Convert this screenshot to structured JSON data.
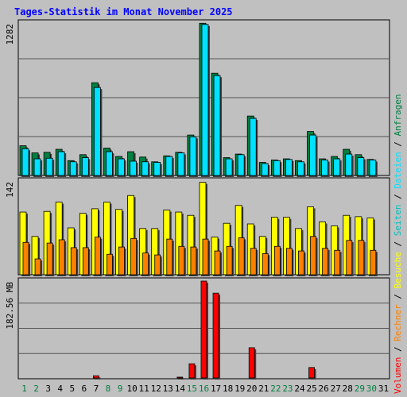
{
  "title": "Tages-Statistik im Monat November 2025",
  "right_legend": {
    "volumen": "Volumen",
    "rechner": "Rechner",
    "besuche": "Besuche",
    "seiten": "Seiten",
    "dateien": "Dateien",
    "anfragen": "Anfragen",
    "sep": " / "
  },
  "colors": {
    "background": "#c0c0c0",
    "title": "#0000ff",
    "anfragen": "#008040",
    "dateien": "#00e0ff",
    "seiten": "#00c0c0",
    "besuche": "#ffff00",
    "rechner": "#ff8000",
    "volumen": "#ff0000",
    "weekend_label": "#008040",
    "axis_label": "#000000",
    "frame": "#000000",
    "gridline": "#555555"
  },
  "chart_data": [
    {
      "type": "bar",
      "name": "hits_files",
      "ylabel": "1282",
      "ylim": [
        0,
        1282
      ],
      "categories": [
        "1",
        "2",
        "3",
        "4",
        "5",
        "6",
        "7",
        "8",
        "9",
        "10",
        "11",
        "12",
        "13",
        "14",
        "15",
        "16",
        "17",
        "18",
        "19",
        "20",
        "21",
        "22",
        "23",
        "24",
        "25",
        "26",
        "27",
        "28",
        "29",
        "30",
        "31"
      ],
      "series": [
        {
          "name": "Anfragen",
          "values": [
            250,
            190,
            195,
            220,
            125,
            175,
            780,
            230,
            160,
            200,
            155,
            115,
            165,
            195,
            340,
            1280,
            860,
            150,
            180,
            500,
            110,
            130,
            140,
            125,
            370,
            140,
            160,
            220,
            175,
            135,
            null
          ]
        },
        {
          "name": "Dateien",
          "values": [
            225,
            140,
            145,
            200,
            115,
            150,
            740,
            200,
            140,
            120,
            115,
            110,
            160,
            190,
            325,
            1270,
            840,
            140,
            175,
            480,
            100,
            125,
            135,
            115,
            340,
            130,
            140,
            180,
            150,
            130,
            null
          ]
        }
      ]
    },
    {
      "type": "bar",
      "name": "pages_visits_hosts",
      "ylabel": "142",
      "ylim": [
        0,
        142
      ],
      "categories": [
        "1",
        "2",
        "3",
        "4",
        "5",
        "6",
        "7",
        "8",
        "9",
        "10",
        "11",
        "12",
        "13",
        "14",
        "15",
        "16",
        "17",
        "18",
        "19",
        "20",
        "21",
        "22",
        "23",
        "24",
        "25",
        "26",
        "27",
        "28",
        "29",
        "30",
        "31"
      ],
      "series": [
        {
          "name": "Seiten",
          "values": [
            95,
            58,
            96,
            110,
            71,
            93,
            100,
            110,
            99,
            120,
            70,
            70,
            98,
            95,
            90,
            140,
            57,
            78,
            105,
            77,
            58,
            87,
            87,
            70,
            103,
            80,
            74,
            90,
            88,
            86,
            null
          ]
        },
        {
          "name": "Besuche",
          "values": [
            95,
            58,
            96,
            110,
            71,
            93,
            100,
            110,
            99,
            120,
            70,
            70,
            98,
            95,
            90,
            140,
            57,
            78,
            105,
            77,
            58,
            87,
            87,
            70,
            103,
            80,
            74,
            90,
            88,
            86,
            null
          ]
        },
        {
          "name": "Rechner",
          "values": [
            49,
            24,
            48,
            53,
            41,
            41,
            57,
            31,
            42,
            55,
            33,
            30,
            54,
            43,
            42,
            54,
            36,
            43,
            56,
            40,
            32,
            43,
            40,
            36,
            58,
            40,
            37,
            52,
            52,
            37,
            null
          ]
        }
      ]
    },
    {
      "type": "bar",
      "name": "volume",
      "ylabel": "182.56 MB",
      "ylim": [
        0,
        182.56
      ],
      "categories": [
        "1",
        "2",
        "3",
        "4",
        "5",
        "6",
        "7",
        "8",
        "9",
        "10",
        "11",
        "12",
        "13",
        "14",
        "15",
        "16",
        "17",
        "18",
        "19",
        "20",
        "21",
        "22",
        "23",
        "24",
        "25",
        "26",
        "27",
        "28",
        "29",
        "30",
        "31"
      ],
      "series": [
        {
          "name": "Volumen",
          "values": [
            1.5,
            1.5,
            1.5,
            1.5,
            1.5,
            1.5,
            5.5,
            1.5,
            1.5,
            1.5,
            1.5,
            1.5,
            1.5,
            3,
            28,
            182.56,
            160,
            1.5,
            1.5,
            58,
            1.5,
            1.5,
            1.5,
            1.5,
            21,
            1.5,
            1.5,
            1.5,
            1.5,
            1.5,
            null
          ]
        }
      ]
    }
  ],
  "x_labels": [
    "1",
    "2",
    "3",
    "4",
    "5",
    "6",
    "7",
    "8",
    "9",
    "10",
    "11",
    "12",
    "13",
    "14",
    "15",
    "16",
    "17",
    "18",
    "19",
    "20",
    "21",
    "22",
    "23",
    "24",
    "25",
    "26",
    "27",
    "28",
    "29",
    "30",
    "31"
  ],
  "weekend_days": [
    "1",
    "2",
    "8",
    "9",
    "15",
    "16",
    "22",
    "23",
    "29",
    "30"
  ]
}
